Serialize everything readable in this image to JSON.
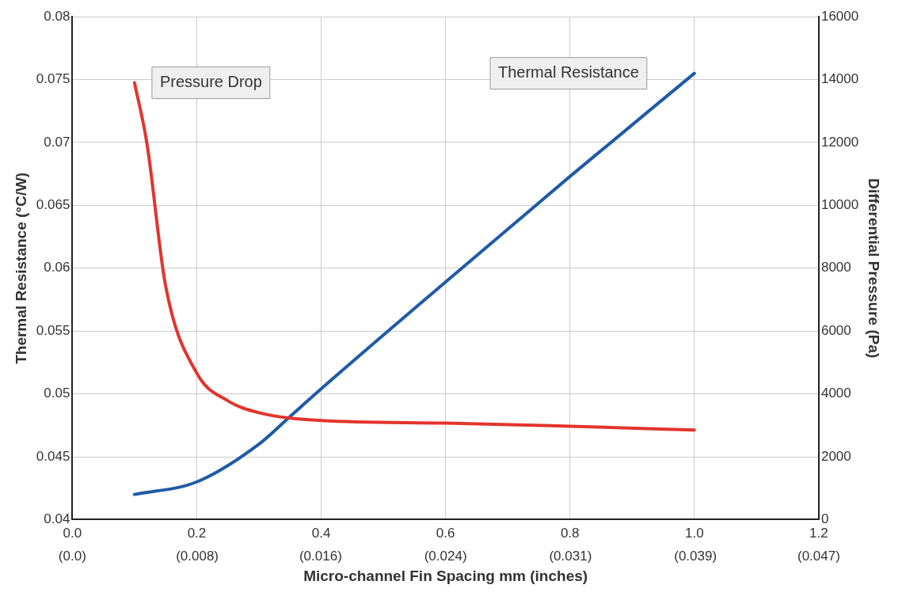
{
  "chart_data": {
    "type": "line",
    "xlabel": "Micro-channel Fin Spacing mm (inches)",
    "ylabel": "Thermal Resistance (°C/W)",
    "y2label": "Differential Pressure (Pa)",
    "xlim": [
      0,
      1.2
    ],
    "xticks": [
      {
        "value": 0,
        "label": "0.0"
      },
      {
        "value": 0.2,
        "label": "0.2"
      },
      {
        "value": 0.4,
        "label": "0.4"
      },
      {
        "value": 0.6,
        "label": "0.6"
      },
      {
        "value": 0.8,
        "label": "0.8"
      },
      {
        "value": 1.0,
        "label": "1.0"
      },
      {
        "value": 1.2,
        "label": "1.2"
      }
    ],
    "x2lim": [
      0,
      0.0472
    ],
    "x2ticks": [
      {
        "value": 0,
        "label": "(0.0)"
      },
      {
        "value": 0.0079,
        "label": "(0.008)"
      },
      {
        "value": 0.0157,
        "label": "(0.016)"
      },
      {
        "value": 0.0236,
        "label": "(0.024)"
      },
      {
        "value": 0.0315,
        "label": "(0.031)"
      },
      {
        "value": 0.0394,
        "label": "(0.039)"
      },
      {
        "value": 0.0472,
        "label": "(0.047)"
      }
    ],
    "ylim": [
      0.04,
      0.08
    ],
    "yticks": [
      0.04,
      0.045,
      0.05,
      0.055,
      0.06,
      0.065,
      0.07,
      0.075,
      0.08
    ],
    "y2lim": [
      0,
      16000
    ],
    "y2ticks": [
      0,
      2000,
      4000,
      6000,
      8000,
      10000,
      12000,
      14000,
      16000
    ],
    "grid": true,
    "marker": "none",
    "line_style": "solid",
    "series": [
      {
        "name": "Pressure Drop",
        "color": "#e3342c",
        "axis": "y2",
        "x": [
          0.1,
          0.12,
          0.15,
          0.2,
          0.25,
          0.3,
          0.4,
          0.6,
          0.8,
          1.0
        ],
        "values": [
          13900,
          11960,
          7430,
          4660,
          3780,
          3400,
          3150,
          3070,
          2970,
          2850
        ]
      },
      {
        "name": "Thermal Resistance",
        "color": "#1f5aa6",
        "axis": "y",
        "x": [
          0.1,
          0.2,
          0.3,
          0.35,
          0.4,
          0.6,
          0.8,
          1.0
        ],
        "values": [
          0.042,
          0.043,
          0.046,
          0.0482,
          0.0504,
          0.0589,
          0.0673,
          0.0755
        ]
      }
    ]
  }
}
